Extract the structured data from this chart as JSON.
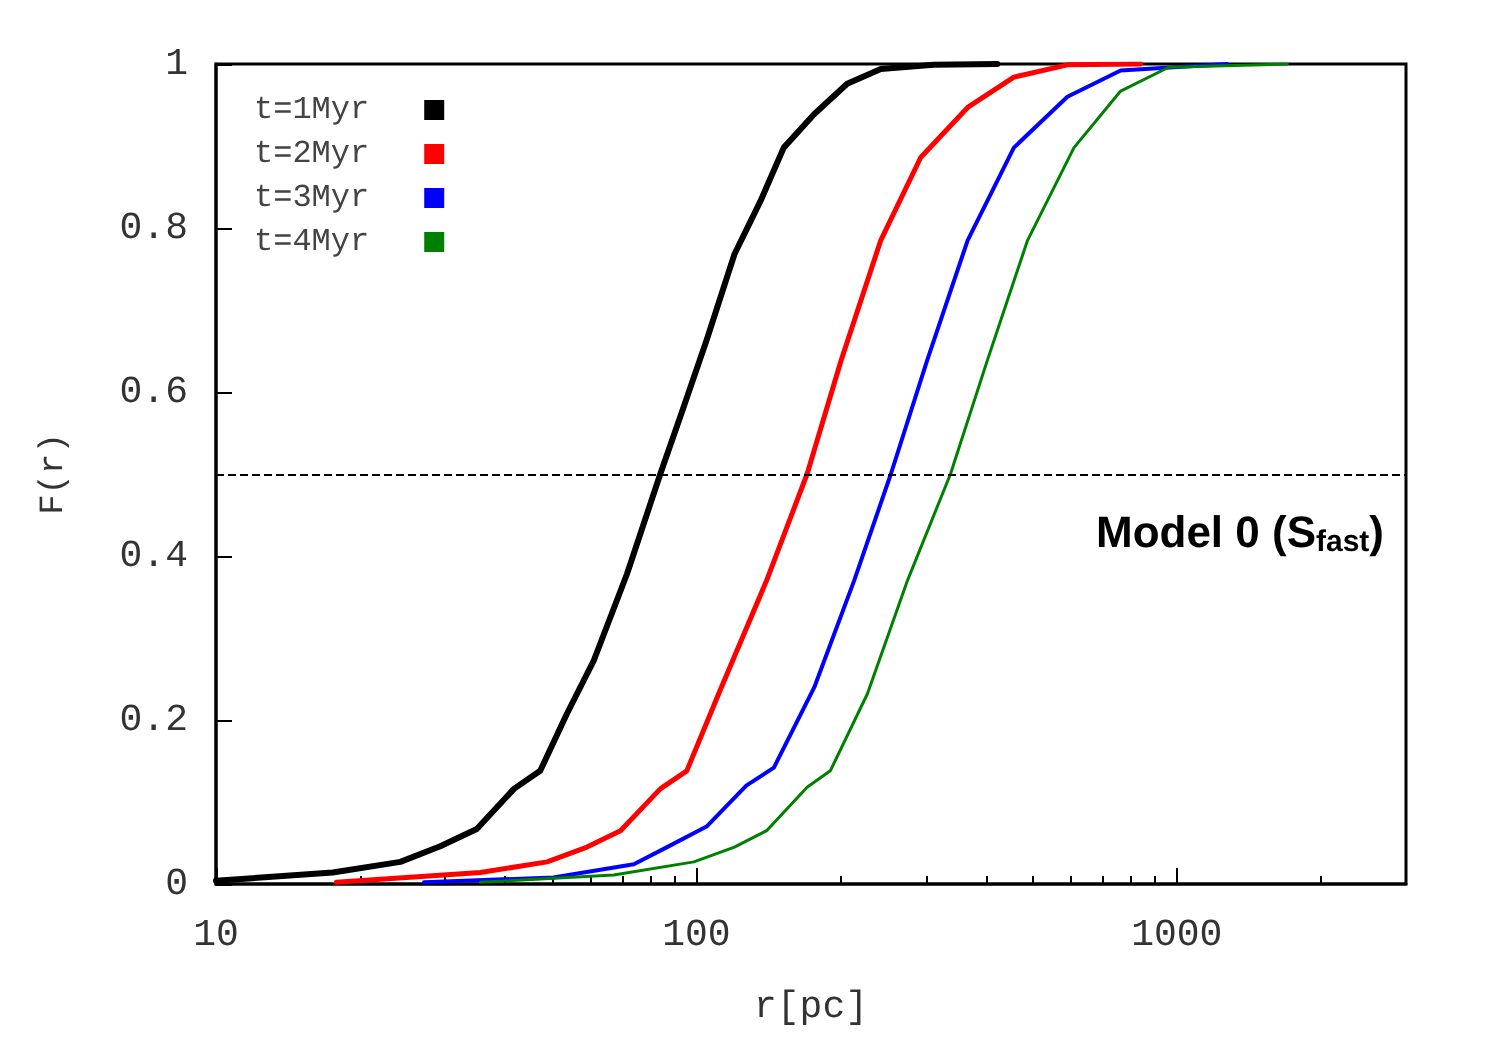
{
  "chart_data": {
    "type": "line",
    "xlabel": "r[pc]",
    "ylabel": "F(r)",
    "log": "x",
    "xlim": [
      10,
      3000
    ],
    "xticks": [
      10,
      100,
      1000
    ],
    "ylim": [
      0,
      1
    ],
    "yticks": [
      0,
      0.2,
      0.4,
      0.6,
      0.8,
      1
    ],
    "grid": false,
    "legend": "top left",
    "marker": "none",
    "line_style": "solid",
    "annotations": [
      "Model 0 (S$_{fast}$)"
    ],
    "ref_lines": [
      {
        "axis": "y",
        "value": 0.5,
        "label": null,
        "color": "#000000",
        "line_style": "dashed"
      }
    ],
    "series": [
      {
        "name": "t=1Myr",
        "color": "#000000",
        "x": [
          10,
          17.5,
          24.2,
          29.3,
          34.9,
          41.7,
          47.3,
          53.7,
          61.1,
          71.7,
          84.1,
          92.6,
          105,
          120,
          136,
          152,
          176,
          206,
          242,
          312,
          423
        ],
        "values": [
          0.004,
          0.014,
          0.027,
          0.046,
          0.067,
          0.116,
          0.138,
          0.207,
          0.272,
          0.378,
          0.5,
          0.57,
          0.663,
          0.768,
          0.833,
          0.898,
          0.939,
          0.976,
          0.994,
          0.999,
          1.0
        ]
      },
      {
        "name": "t=2Myr",
        "color": "#ff0000",
        "x": [
          17.8,
          35.5,
          48.9,
          59.2,
          69.5,
          84.1,
          95.5,
          112,
          140,
          170,
          200,
          242,
          293,
          367,
          458,
          592,
          841
        ],
        "values": [
          0.002,
          0.014,
          0.027,
          0.045,
          0.065,
          0.116,
          0.138,
          0.236,
          0.37,
          0.5,
          0.638,
          0.785,
          0.886,
          0.947,
          0.984,
          0.999,
          1.0
        ]
      },
      {
        "name": "t=3Myr",
        "color": "#0000ff",
        "x": [
          27.1,
          50.4,
          74.1,
          86.9,
          105,
          127,
          145,
          176,
          213,
          254,
          302,
          367,
          458,
          592,
          764,
          1273
        ],
        "values": [
          0.002,
          0.008,
          0.024,
          0.045,
          0.07,
          0.12,
          0.142,
          0.24,
          0.37,
          0.5,
          0.638,
          0.785,
          0.898,
          0.96,
          0.992,
          1.0
        ]
      },
      {
        "name": "t=4Myr",
        "color": "#008000",
        "x": [
          35.5,
          67.3,
          98.8,
          120,
          140,
          170,
          190,
          227,
          275,
          338,
          403,
          489,
          611,
          764,
          962,
          1698
        ],
        "values": [
          0.002,
          0.011,
          0.027,
          0.045,
          0.065,
          0.118,
          0.138,
          0.232,
          0.37,
          0.5,
          0.638,
          0.785,
          0.898,
          0.967,
          0.996,
          1.0
        ]
      }
    ]
  }
}
